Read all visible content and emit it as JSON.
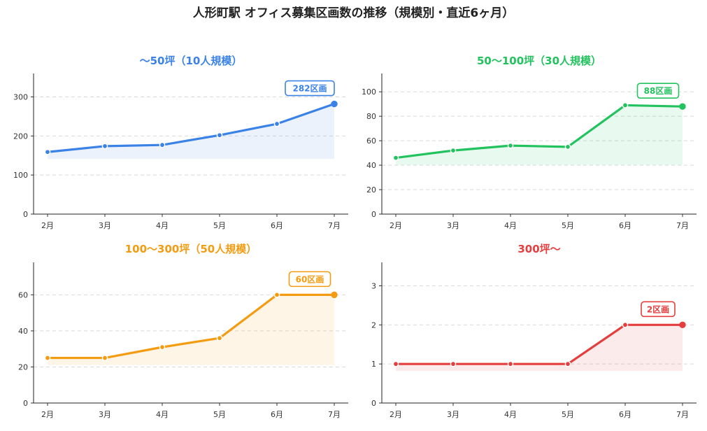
{
  "title": "人形町駅 オフィス募集区画数の推移（規模別・直近6ヶ月）",
  "chart_data": [
    {
      "type": "area",
      "title": "〜50坪（10人規模）",
      "color": "#3b82e6",
      "categories": [
        "2月",
        "3月",
        "4月",
        "5月",
        "6月",
        "7月"
      ],
      "values": [
        159,
        174,
        177,
        202,
        231,
        282
      ],
      "ylim": [
        0,
        360
      ],
      "yticks": [
        0,
        100,
        200,
        300
      ],
      "badge": "282区画",
      "grid": true
    },
    {
      "type": "area",
      "title": "50〜100坪（30人規模）",
      "color": "#22c35e",
      "categories": [
        "2月",
        "3月",
        "4月",
        "5月",
        "6月",
        "7月"
      ],
      "values": [
        46,
        52,
        56,
        55,
        89,
        88
      ],
      "ylim": [
        0,
        115
      ],
      "yticks": [
        0,
        20,
        40,
        60,
        80,
        100
      ],
      "badge": "88区画",
      "grid": true
    },
    {
      "type": "area",
      "title": "100〜300坪（50人規模）",
      "color": "#f39c12",
      "categories": [
        "2月",
        "3月",
        "4月",
        "5月",
        "6月",
        "7月"
      ],
      "values": [
        25,
        25,
        31,
        36,
        60,
        60
      ],
      "ylim": [
        0,
        78
      ],
      "yticks": [
        0,
        20,
        40,
        60
      ],
      "badge": "60区画",
      "grid": true
    },
    {
      "type": "area",
      "title": "300坪〜",
      "color": "#e53e3e",
      "categories": [
        "2月",
        "3月",
        "4月",
        "5月",
        "6月",
        "7月"
      ],
      "values": [
        1,
        1,
        1,
        1,
        2,
        2
      ],
      "ylim": [
        0,
        3.6
      ],
      "yticks": [
        0,
        1,
        2,
        3
      ],
      "badge": "2区画",
      "grid": true
    }
  ]
}
